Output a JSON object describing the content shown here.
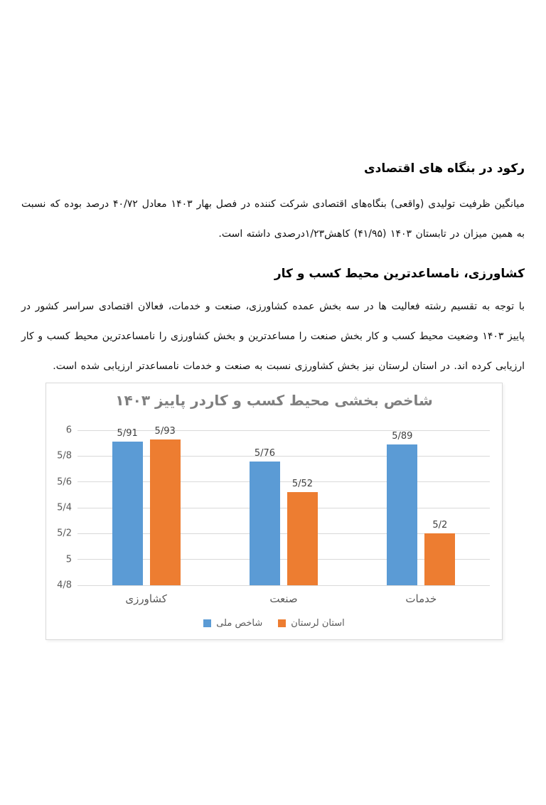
{
  "page": {
    "section1": {
      "heading": "رکود در بنگاه های اقتصادی",
      "paragraph": "میانگین ظرفیت تولیدی (واقعی) بنگاه‌های اقتصادی شرکت کننده در فصل بهار ۱۴۰۳ معادل ۴۰/۷۲ درصد بوده که نسبت به همین میزان در تابستان ۱۴۰۳ (۴۱/۹۵) کاهش۱/۲۳درصدی داشته است."
    },
    "section2": {
      "heading": "کشاورزی، نامساعدترین محیط کسب و کار",
      "paragraph": "با توجه به تقسیم رشته فعالیت ها در سه بخش عمده کشاورزی، صنعت و خدمات، فعالان اقتصادی سراسر کشور در پاییز ۱۴۰۳ وضعیت محیط کسب و کار بخش صنعت را مساعدترین و بخش کشاورزی را نامساعدترین محیط کسب و کار ارزیابی کرده اند. در استان لرستان نیز بخش کشاورزی نسبت به صنعت و خدمات نامساعدتر ارزیابی شده است."
    }
  },
  "chart_data": {
    "type": "bar",
    "title": "شاخص بخشی محیط کسب و کاردر پاییز ۱۴۰۳",
    "categories": [
      "کشاورزی",
      "صنعت",
      "خدمات"
    ],
    "series": [
      {
        "name": "شاخص ملی",
        "color": "#5B9BD5",
        "values": [
          5.91,
          5.76,
          5.89
        ],
        "labels": [
          "5/91",
          "5/76",
          "5/89"
        ]
      },
      {
        "name": "استان لرستان",
        "color": "#ED7D31",
        "values": [
          5.93,
          5.52,
          5.2
        ],
        "labels": [
          "5/93",
          "5/52",
          "5/2"
        ]
      }
    ],
    "y_ticks": [
      "6",
      "5/8",
      "5/6",
      "5/4",
      "5/2",
      "5",
      "4/8"
    ],
    "ylim": [
      4.8,
      6
    ],
    "grid": true,
    "legend_position": "bottom",
    "title_color": "#7f7f7f",
    "axis_text_color": "#595959",
    "gridline_color": "#d9d9d9"
  }
}
